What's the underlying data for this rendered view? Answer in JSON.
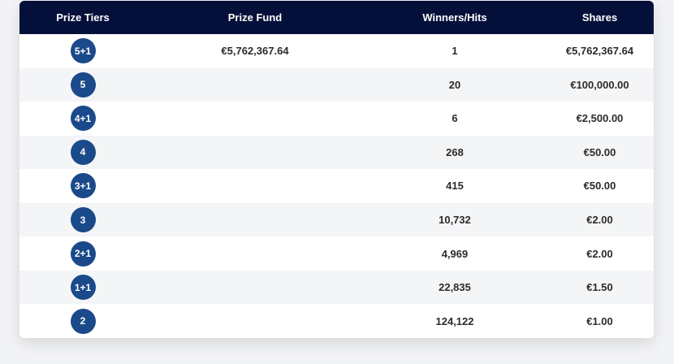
{
  "colors": {
    "header_bg": "#05103a",
    "badge_bg": "#1a4a8a",
    "row_alt_bg": "#f4f5f7"
  },
  "table": {
    "headers": [
      "Prize Tiers",
      "Prize Fund",
      "Winners/Hits",
      "Shares"
    ],
    "rows": [
      {
        "tier": "5+1",
        "fund": "€5,762,367.64",
        "winners": "1",
        "share": "€5,762,367.64"
      },
      {
        "tier": "5",
        "fund": "",
        "winners": "20",
        "share": "€100,000.00"
      },
      {
        "tier": "4+1",
        "fund": "",
        "winners": "6",
        "share": "€2,500.00"
      },
      {
        "tier": "4",
        "fund": "",
        "winners": "268",
        "share": "€50.00"
      },
      {
        "tier": "3+1",
        "fund": "",
        "winners": "415",
        "share": "€50.00"
      },
      {
        "tier": "3",
        "fund": "",
        "winners": "10,732",
        "share": "€2.00"
      },
      {
        "tier": "2+1",
        "fund": "",
        "winners": "4,969",
        "share": "€2.00"
      },
      {
        "tier": "1+1",
        "fund": "",
        "winners": "22,835",
        "share": "€1.50"
      },
      {
        "tier": "2",
        "fund": "",
        "winners": "124,122",
        "share": "€1.00"
      }
    ]
  }
}
